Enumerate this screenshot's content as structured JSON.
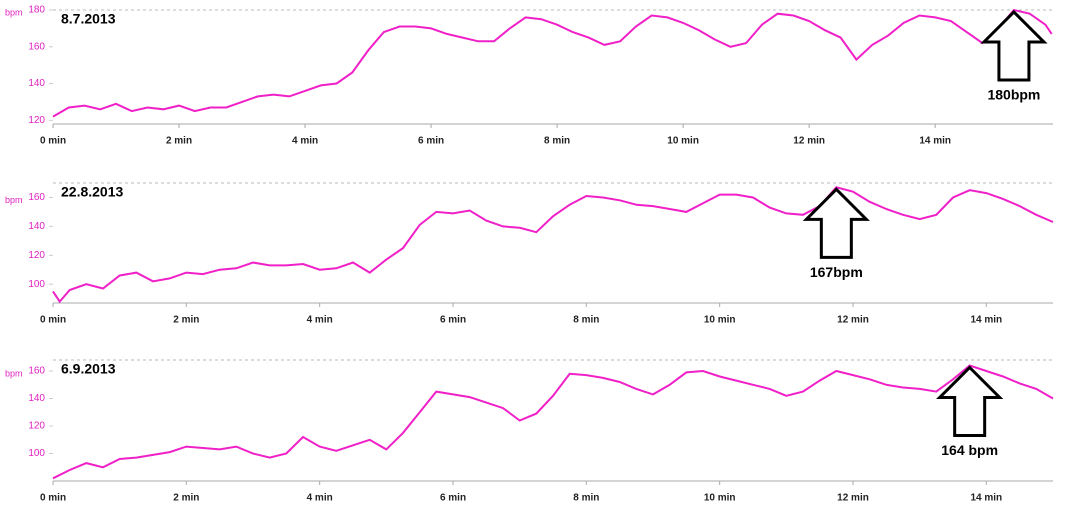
{
  "chart_data": [
    {
      "type": "line",
      "title": "8.7.2013",
      "y_label": "bpm",
      "annotation": "180bpm",
      "color": "#f020c8",
      "x": [
        0,
        0.25,
        0.5,
        0.75,
        1,
        1.25,
        1.5,
        1.75,
        2,
        2.25,
        2.5,
        2.75,
        3,
        3.25,
        3.5,
        3.75,
        4,
        4.25,
        4.5,
        4.75,
        5,
        5.25,
        5.5,
        5.75,
        6,
        6.25,
        6.5,
        6.75,
        7,
        7.25,
        7.5,
        7.75,
        8,
        8.25,
        8.5,
        8.75,
        9,
        9.25,
        9.5,
        9.75,
        10,
        10.25,
        10.5,
        10.75,
        11,
        11.25,
        11.5,
        11.75,
        12,
        12.25,
        12.5,
        12.75,
        13,
        13.25,
        13.5,
        13.75,
        14,
        14.25,
        14.5,
        14.75,
        15,
        15.25,
        15.5,
        15.75,
        15.85
      ],
      "values": [
        122,
        127,
        128,
        126,
        129,
        125,
        127,
        126,
        128,
        125,
        127,
        127,
        130,
        133,
        134,
        133,
        136,
        139,
        140,
        146,
        158,
        168,
        171,
        171,
        170,
        167,
        165,
        163,
        163,
        170,
        176,
        175,
        172,
        168,
        165,
        161,
        163,
        171,
        177,
        176,
        173,
        169,
        164,
        160,
        162,
        172,
        178,
        177,
        174,
        169,
        165,
        153,
        161,
        166,
        173,
        177,
        176,
        174,
        168,
        162,
        170,
        180,
        178,
        172,
        167
      ],
      "xlim": [
        0,
        15.87
      ],
      "ylim": [
        118,
        180
      ],
      "yticks": [
        120,
        140,
        160,
        180
      ],
      "xticks": [
        {
          "value": 0,
          "label": "0 min"
        },
        {
          "value": 2,
          "label": "2 min"
        },
        {
          "value": 4,
          "label": "4 min"
        },
        {
          "value": 6,
          "label": "6 min"
        },
        {
          "value": 8,
          "label": "8 min"
        },
        {
          "value": 10,
          "label": "10 min"
        },
        {
          "value": 12,
          "label": "12 min"
        },
        {
          "value": 14,
          "label": "14 min"
        }
      ]
    },
    {
      "type": "line",
      "title": "22.8.2013",
      "y_label": "bpm",
      "annotation": "167bpm",
      "color": "#f020c8",
      "x": [
        0,
        0.1,
        0.25,
        0.5,
        0.75,
        1,
        1.25,
        1.5,
        1.75,
        2,
        2.25,
        2.5,
        2.75,
        3,
        3.25,
        3.5,
        3.75,
        4,
        4.25,
        4.5,
        4.75,
        5,
        5.25,
        5.5,
        5.75,
        6,
        6.25,
        6.5,
        6.75,
        7,
        7.25,
        7.5,
        7.75,
        8,
        8.25,
        8.5,
        8.75,
        9,
        9.25,
        9.5,
        9.75,
        10,
        10.25,
        10.5,
        10.75,
        11,
        11.25,
        11.5,
        11.75,
        12,
        12.25,
        12.5,
        12.75,
        13,
        13.25,
        13.5,
        13.75,
        14,
        14.25,
        14.5,
        14.75,
        15
      ],
      "values": [
        95,
        88,
        96,
        100,
        97,
        106,
        108,
        102,
        104,
        108,
        107,
        110,
        111,
        115,
        113,
        113,
        114,
        110,
        111,
        115,
        108,
        117,
        125,
        141,
        150,
        149,
        151,
        144,
        140,
        139,
        136,
        147,
        155,
        161,
        160,
        158,
        155,
        154,
        152,
        150,
        156,
        162,
        162,
        160,
        153,
        149,
        148,
        154,
        167,
        164,
        157,
        152,
        148,
        145,
        148,
        160,
        165,
        163,
        159,
        154,
        148,
        143
      ],
      "xlim": [
        0,
        15
      ],
      "ylim": [
        87,
        170
      ],
      "yticks": [
        100,
        120,
        140,
        160
      ],
      "xticks": [
        {
          "value": 0,
          "label": "0 min"
        },
        {
          "value": 2,
          "label": "2 min"
        },
        {
          "value": 4,
          "label": "4 min"
        },
        {
          "value": 6,
          "label": "6 min"
        },
        {
          "value": 8,
          "label": "8 min"
        },
        {
          "value": 10,
          "label": "10 min"
        },
        {
          "value": 12,
          "label": "12 min"
        },
        {
          "value": 14,
          "label": "14 min"
        }
      ]
    },
    {
      "type": "line",
      "title": "6.9.2013",
      "y_label": "bpm",
      "annotation": "164 bpm",
      "color": "#f020c8",
      "x": [
        0,
        0.25,
        0.5,
        0.75,
        1,
        1.25,
        1.5,
        1.75,
        2,
        2.25,
        2.5,
        2.75,
        3,
        3.25,
        3.5,
        3.75,
        4,
        4.25,
        4.5,
        4.75,
        5,
        5.25,
        5.5,
        5.75,
        6,
        6.25,
        6.5,
        6.75,
        7,
        7.25,
        7.5,
        7.75,
        8,
        8.25,
        8.5,
        8.75,
        9,
        9.25,
        9.5,
        9.75,
        10,
        10.25,
        10.5,
        10.75,
        11,
        11.25,
        11.5,
        11.75,
        12,
        12.25,
        12.5,
        12.75,
        13,
        13.25,
        13.5,
        13.75,
        14,
        14.25,
        14.5,
        14.75,
        15
      ],
      "values": [
        82,
        88,
        93,
        90,
        96,
        97,
        99,
        101,
        105,
        104,
        103,
        105,
        100,
        97,
        100,
        112,
        105,
        102,
        106,
        110,
        103,
        115,
        130,
        145,
        143,
        141,
        137,
        133,
        124,
        129,
        142,
        158,
        157,
        155,
        152,
        147,
        143,
        150,
        159,
        160,
        156,
        153,
        150,
        147,
        142,
        145,
        153,
        160,
        157,
        154,
        150,
        148,
        147,
        145,
        154,
        164,
        160,
        156,
        151,
        147,
        140
      ],
      "xlim": [
        0,
        15
      ],
      "ylim": [
        80,
        168
      ],
      "yticks": [
        100,
        120,
        140,
        160
      ],
      "xticks": [
        {
          "value": 0,
          "label": "0 min"
        },
        {
          "value": 2,
          "label": "2 min"
        },
        {
          "value": 4,
          "label": "4 min"
        },
        {
          "value": 6,
          "label": "6 min"
        },
        {
          "value": 8,
          "label": "8 min"
        },
        {
          "value": 10,
          "label": "10 min"
        },
        {
          "value": 12,
          "label": "12 min"
        },
        {
          "value": 14,
          "label": "14 min"
        }
      ]
    }
  ]
}
